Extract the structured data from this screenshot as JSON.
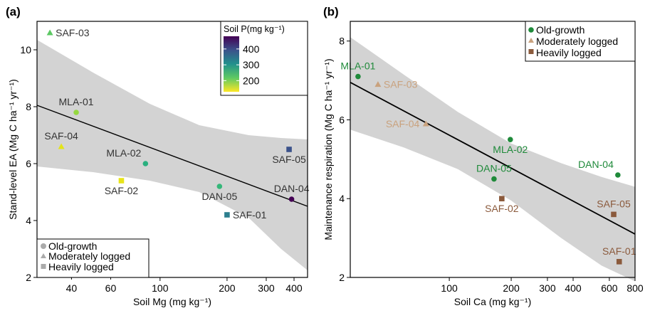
{
  "chart_data": [
    {
      "panel_label": "(a)",
      "type": "scatter",
      "xlabel": "Soil Mg (mg kg⁻¹)",
      "ylabel": "Stand-level EA (Mg C ha⁻¹ yr⁻¹)",
      "x_scale": "log",
      "xlim": [
        28,
        460
      ],
      "ylim": [
        2,
        11
      ],
      "x_ticks": [
        100,
        200,
        300,
        400
      ],
      "x_minor_ticks": [
        40,
        60
      ],
      "x_tick_labels": [
        "40",
        "60",
        "100",
        "200",
        "300",
        "400"
      ],
      "y_ticks": [
        2,
        4,
        6,
        8,
        10
      ],
      "y_tick_labels": [
        "2",
        "4",
        "6",
        "8",
        "10"
      ],
      "colorbar": {
        "title": "Soil P(mg kg⁻¹)",
        "range": [
          130,
          480
        ],
        "ticks": [
          200,
          300,
          400
        ],
        "tick_labels": [
          "200",
          "300",
          "400"
        ]
      },
      "legend": {
        "placement": "bottom-left",
        "entries": [
          {
            "name": "Old-growth",
            "marker": "circle"
          },
          {
            "name": "Moderately logged",
            "marker": "triangle"
          },
          {
            "name": "Heavily logged",
            "marker": "square"
          }
        ]
      },
      "regression": {
        "x": [
          28,
          460
        ],
        "y": [
          8.05,
          4.5
        ]
      },
      "confidence_band": {
        "x": [
          28,
          50,
          90,
          150,
          250,
          350,
          460
        ],
        "upper": [
          10.35,
          9.2,
          8.1,
          7.35,
          7.0,
          6.9,
          6.85
        ],
        "lower": [
          5.9,
          5.7,
          5.4,
          5.0,
          4.1,
          3.0,
          2.25
        ]
      },
      "points": [
        {
          "label": "SAF-03",
          "x": 32,
          "y": 10.6,
          "soil_p": 180,
          "group": "Moderately logged",
          "marker": "triangle",
          "color": "#5cc863",
          "label_pos": "right"
        },
        {
          "label": "MLA-01",
          "x": 42,
          "y": 7.8,
          "soil_p": 190,
          "group": "Old-growth",
          "marker": "circle",
          "color": "#95d840",
          "label_pos": "above"
        },
        {
          "label": "SAF-04",
          "x": 36,
          "y": 6.6,
          "soil_p": 140,
          "group": "Moderately logged",
          "marker": "triangle",
          "color": "#e3e418",
          "label_pos": "above"
        },
        {
          "label": "SAF-02",
          "x": 67,
          "y": 5.4,
          "soil_p": 150,
          "group": "Heavily logged",
          "marker": "square",
          "color": "#e8e419",
          "label_pos": "below"
        },
        {
          "label": "MLA-02",
          "x": 86,
          "y": 6.0,
          "soil_p": 250,
          "group": "Old-growth",
          "marker": "circle",
          "color": "#2ab07f",
          "label_pos": "above-left"
        },
        {
          "label": "DAN-05",
          "x": 185,
          "y": 5.2,
          "soil_p": 270,
          "group": "Old-growth",
          "marker": "circle",
          "color": "#35b779",
          "label_pos": "below"
        },
        {
          "label": "SAF-05",
          "x": 380,
          "y": 6.5,
          "soil_p": 400,
          "group": "Heavily logged",
          "marker": "square",
          "color": "#3b528b",
          "label_pos": "below"
        },
        {
          "label": "DAN-04",
          "x": 390,
          "y": 4.75,
          "soil_p": 470,
          "group": "Old-growth",
          "marker": "circle",
          "color": "#440154",
          "label_pos": "above"
        },
        {
          "label": "SAF-01",
          "x": 200,
          "y": 4.2,
          "soil_p": 330,
          "group": "Heavily logged",
          "marker": "square",
          "color": "#2c7f8e",
          "label_pos": "right"
        }
      ]
    },
    {
      "panel_label": "(b)",
      "type": "scatter",
      "xlabel": "Soil Ca (mg kg⁻¹)",
      "ylabel": "Maintenance respiration (Mg C ha⁻¹ yr⁻¹)",
      "x_scale": "log",
      "xlim": [
        33,
        800
      ],
      "ylim": [
        2,
        8.5
      ],
      "x_ticks": [
        100,
        200,
        300,
        400,
        600,
        800
      ],
      "x_tick_labels": [
        "100",
        "200",
        "300",
        "400",
        "600",
        "800"
      ],
      "y_ticks": [
        2,
        4,
        6,
        8
      ],
      "y_tick_labels": [
        "2",
        "4",
        "6",
        "8"
      ],
      "legend": {
        "placement": "top-right",
        "entries": [
          {
            "name": "Old-growth",
            "marker": "circle",
            "color": "#1f8a3a"
          },
          {
            "name": "Moderately logged",
            "marker": "triangle",
            "color": "#c9a27e"
          },
          {
            "name": "Heavily logged",
            "marker": "square",
            "color": "#8b5a3c"
          }
        ]
      },
      "regression": {
        "x": [
          33,
          800
        ],
        "y": [
          6.95,
          3.1
        ]
      },
      "confidence_band": {
        "x": [
          33,
          60,
          110,
          200,
          350,
          550,
          800
        ],
        "upper": [
          8.1,
          7.15,
          6.2,
          5.4,
          4.9,
          4.55,
          4.3
        ],
        "lower": [
          5.75,
          5.3,
          4.75,
          3.95,
          3.0,
          2.3,
          1.9
        ]
      },
      "points": [
        {
          "label": "MLA-01",
          "x": 36,
          "y": 7.1,
          "group": "Old-growth",
          "marker": "circle",
          "color": "#1f8a3a",
          "label_pos": "above"
        },
        {
          "label": "SAF-03",
          "x": 45,
          "y": 6.9,
          "group": "Moderately logged",
          "marker": "triangle",
          "color": "#c9a27e",
          "label_pos": "right"
        },
        {
          "label": "SAF-04",
          "x": 77,
          "y": 5.9,
          "group": "Moderately logged",
          "marker": "triangle",
          "color": "#c9a27e",
          "label_pos": "left"
        },
        {
          "label": "MLA-02",
          "x": 198,
          "y": 5.5,
          "group": "Old-growth",
          "marker": "circle",
          "color": "#1f8a3a",
          "label_pos": "below"
        },
        {
          "label": "DAN-05",
          "x": 165,
          "y": 4.5,
          "group": "Old-growth",
          "marker": "circle",
          "color": "#1f8a3a",
          "label_pos": "above"
        },
        {
          "label": "SAF-02",
          "x": 180,
          "y": 4.0,
          "group": "Heavily logged",
          "marker": "square",
          "color": "#8b5a3c",
          "label_pos": "below"
        },
        {
          "label": "DAN-04",
          "x": 660,
          "y": 4.6,
          "group": "Old-growth",
          "marker": "circle",
          "color": "#1f8a3a",
          "label_pos": "above-left"
        },
        {
          "label": "SAF-05",
          "x": 630,
          "y": 3.6,
          "group": "Heavily logged",
          "marker": "square",
          "color": "#8b5a3c",
          "label_pos": "above"
        },
        {
          "label": "SAF-01",
          "x": 670,
          "y": 2.4,
          "group": "Heavily logged",
          "marker": "square",
          "color": "#8b5a3c",
          "label_pos": "above"
        }
      ]
    }
  ]
}
